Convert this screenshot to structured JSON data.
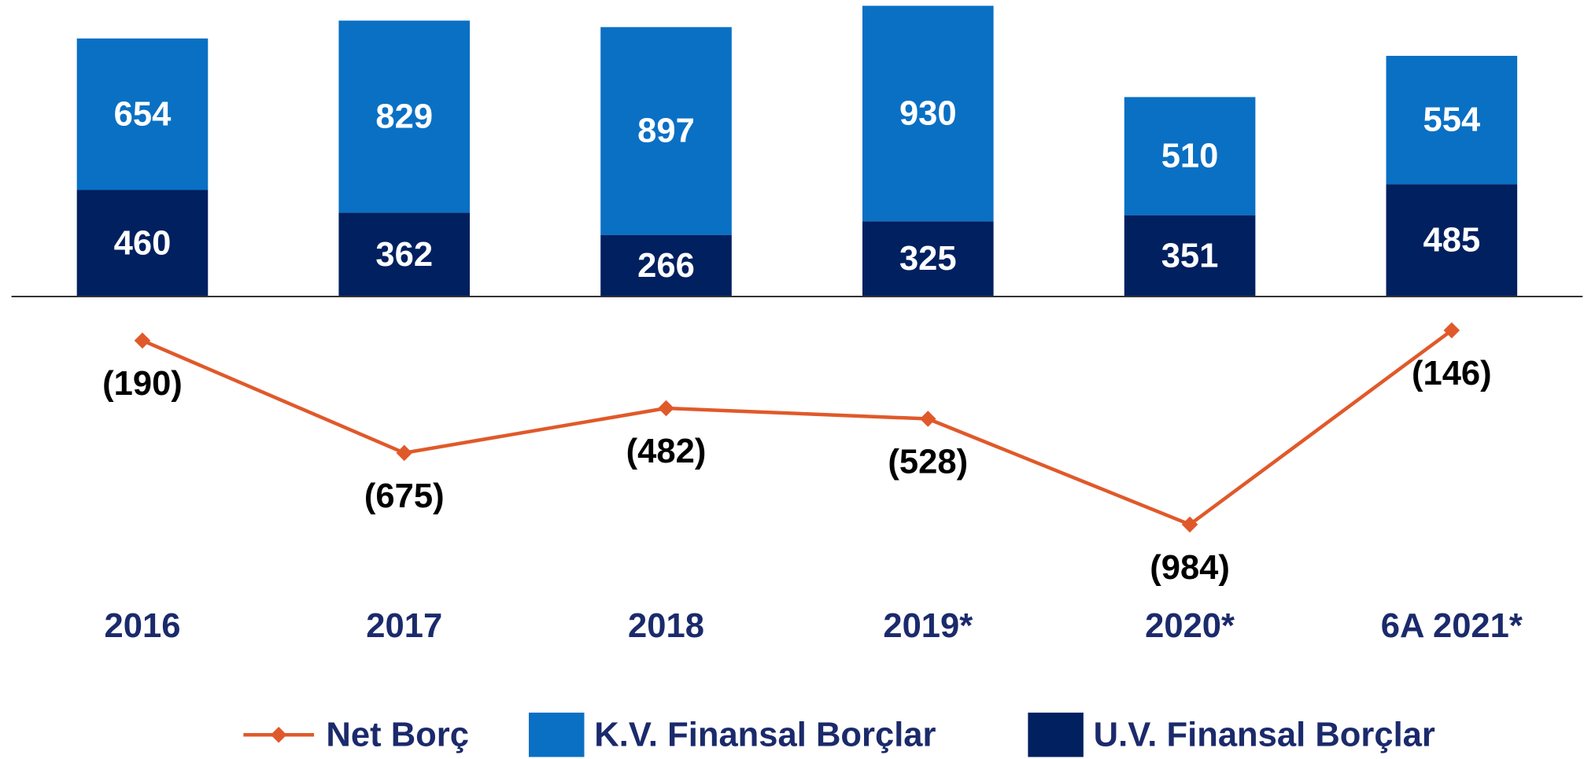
{
  "chart_data": {
    "type": "bar",
    "stacked": true,
    "categories": [
      "2016",
      "2017",
      "2018",
      "2019*",
      "2020*",
      "6A 2021*"
    ],
    "ylim": [
      -1100,
      1280
    ],
    "series": [
      {
        "name": "U.V. Finansal Borçlar",
        "color": "#002060",
        "values": [
          460,
          362,
          266,
          325,
          351,
          485
        ]
      },
      {
        "name": "K.V. Finansal Borçlar",
        "color": "#0a70c4",
        "values": [
          654,
          829,
          897,
          930,
          510,
          554
        ]
      },
      {
        "name": "Net Borç",
        "type": "line",
        "color": "#e0592a",
        "values": [
          -190,
          -675,
          -482,
          -528,
          -984,
          -146
        ],
        "value_labels": [
          "(190)",
          "(675)",
          "(482)",
          "(528)",
          "(984)",
          "(146)"
        ]
      }
    ]
  }
}
